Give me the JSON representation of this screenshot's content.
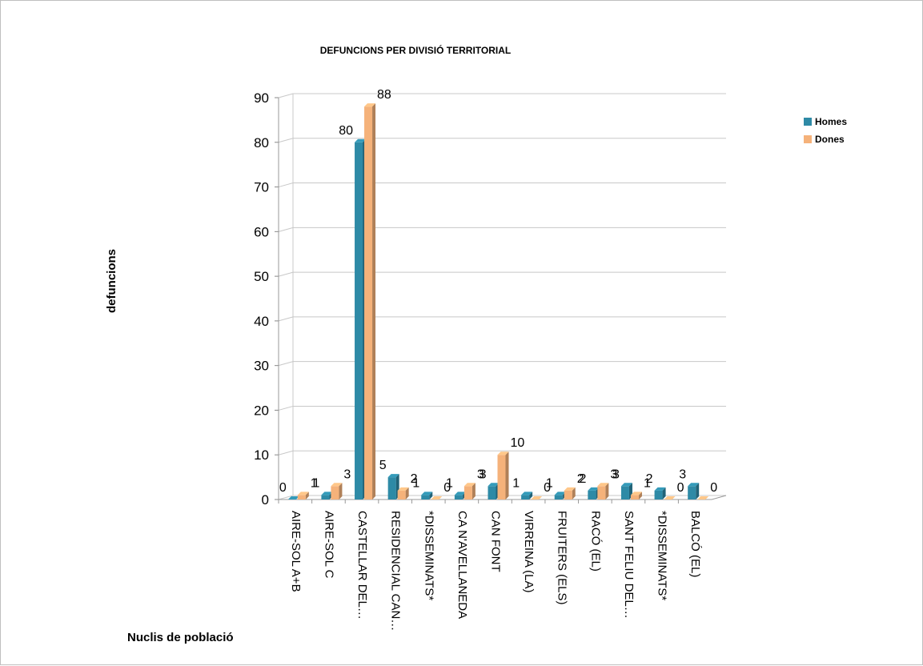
{
  "chart_data": {
    "type": "bar",
    "title": "DEFUNCIONS  PER DIVISIÓ TERRITORIAL",
    "ylabel": "defuncions",
    "xlabel": "Nuclis de població",
    "ylim": [
      0,
      90
    ],
    "yticks": [
      "0",
      "10",
      "20",
      "30",
      "40",
      "50",
      "60",
      "70",
      "80",
      "90"
    ],
    "grid": true,
    "legend_position": "top-right",
    "categories": [
      "AIRE-SOL A+B",
      "AIRE-SOL C",
      "CASTELLAR DEL…",
      "RESIDENCIAL CAN…",
      "*DISSEMINATS*",
      "CA N'AVELLANEDA",
      "CAN FONT",
      "VIRREINA (LA)",
      "FRUITERS (ELS)",
      "RACÓ (EL)",
      "SANT FELIU DEL…",
      "*DISSEMINATS*",
      "BALCÓ (EL)"
    ],
    "series": [
      {
        "name": "Homes",
        "color": "#2e8aa6",
        "values": [
          0,
          1,
          80,
          5,
          1,
          1,
          3,
          1,
          1,
          2,
          3,
          2,
          3
        ],
        "labels": [
          "0",
          "1",
          "80",
          "5",
          "1",
          "1",
          "3",
          "1",
          "1",
          "2",
          "3",
          "2",
          "3"
        ]
      },
      {
        "name": "Dones",
        "color": "#f5b27a",
        "values": [
          1,
          3,
          88,
          2,
          0,
          3,
          10,
          0,
          2,
          3,
          1,
          0,
          0
        ],
        "labels": [
          "1",
          "3",
          "88",
          "2",
          "0",
          "3",
          "10",
          "0",
          "2",
          "3",
          "1",
          "0",
          "0"
        ]
      }
    ]
  }
}
